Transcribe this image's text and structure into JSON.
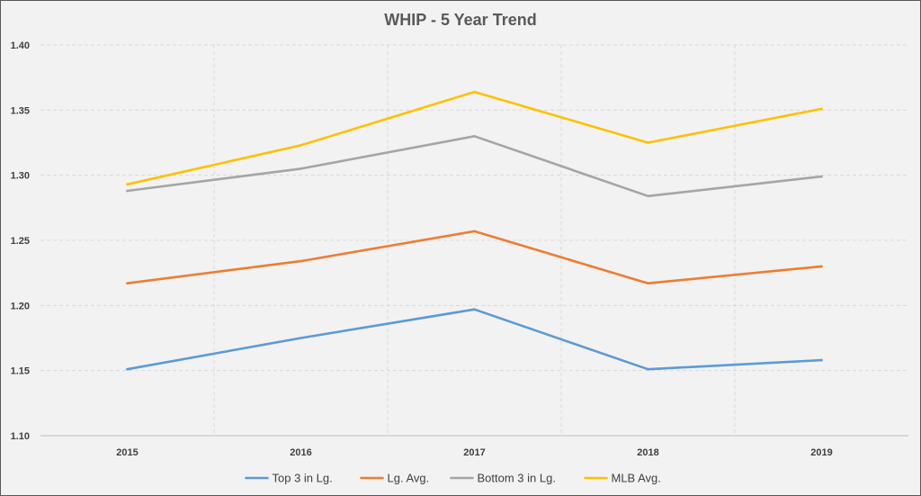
{
  "chart_data": {
    "type": "line",
    "title": "WHIP - 5 Year Trend",
    "xlabel": "",
    "ylabel": "",
    "ylim": [
      1.1,
      1.4
    ],
    "yticks": [
      "1.10",
      "1.15",
      "1.20",
      "1.25",
      "1.30",
      "1.35",
      "1.40"
    ],
    "categories": [
      "2015",
      "2016",
      "2017",
      "2018",
      "2019"
    ],
    "grid": true,
    "legend_position": "bottom",
    "series": [
      {
        "name": "Top 3 in Lg.",
        "color": "#5b9bd5",
        "values": [
          1.151,
          1.175,
          1.197,
          1.151,
          1.158
        ]
      },
      {
        "name": "Lg. Avg.",
        "color": "#ed7d31",
        "values": [
          1.217,
          1.234,
          1.257,
          1.217,
          1.23
        ]
      },
      {
        "name": "Bottom 3 in Lg.",
        "color": "#a5a5a5",
        "values": [
          1.288,
          1.305,
          1.33,
          1.284,
          1.299
        ]
      },
      {
        "name": "MLB Avg.",
        "color": "#ffc000",
        "values": [
          1.293,
          1.323,
          1.364,
          1.325,
          1.351
        ]
      }
    ]
  }
}
